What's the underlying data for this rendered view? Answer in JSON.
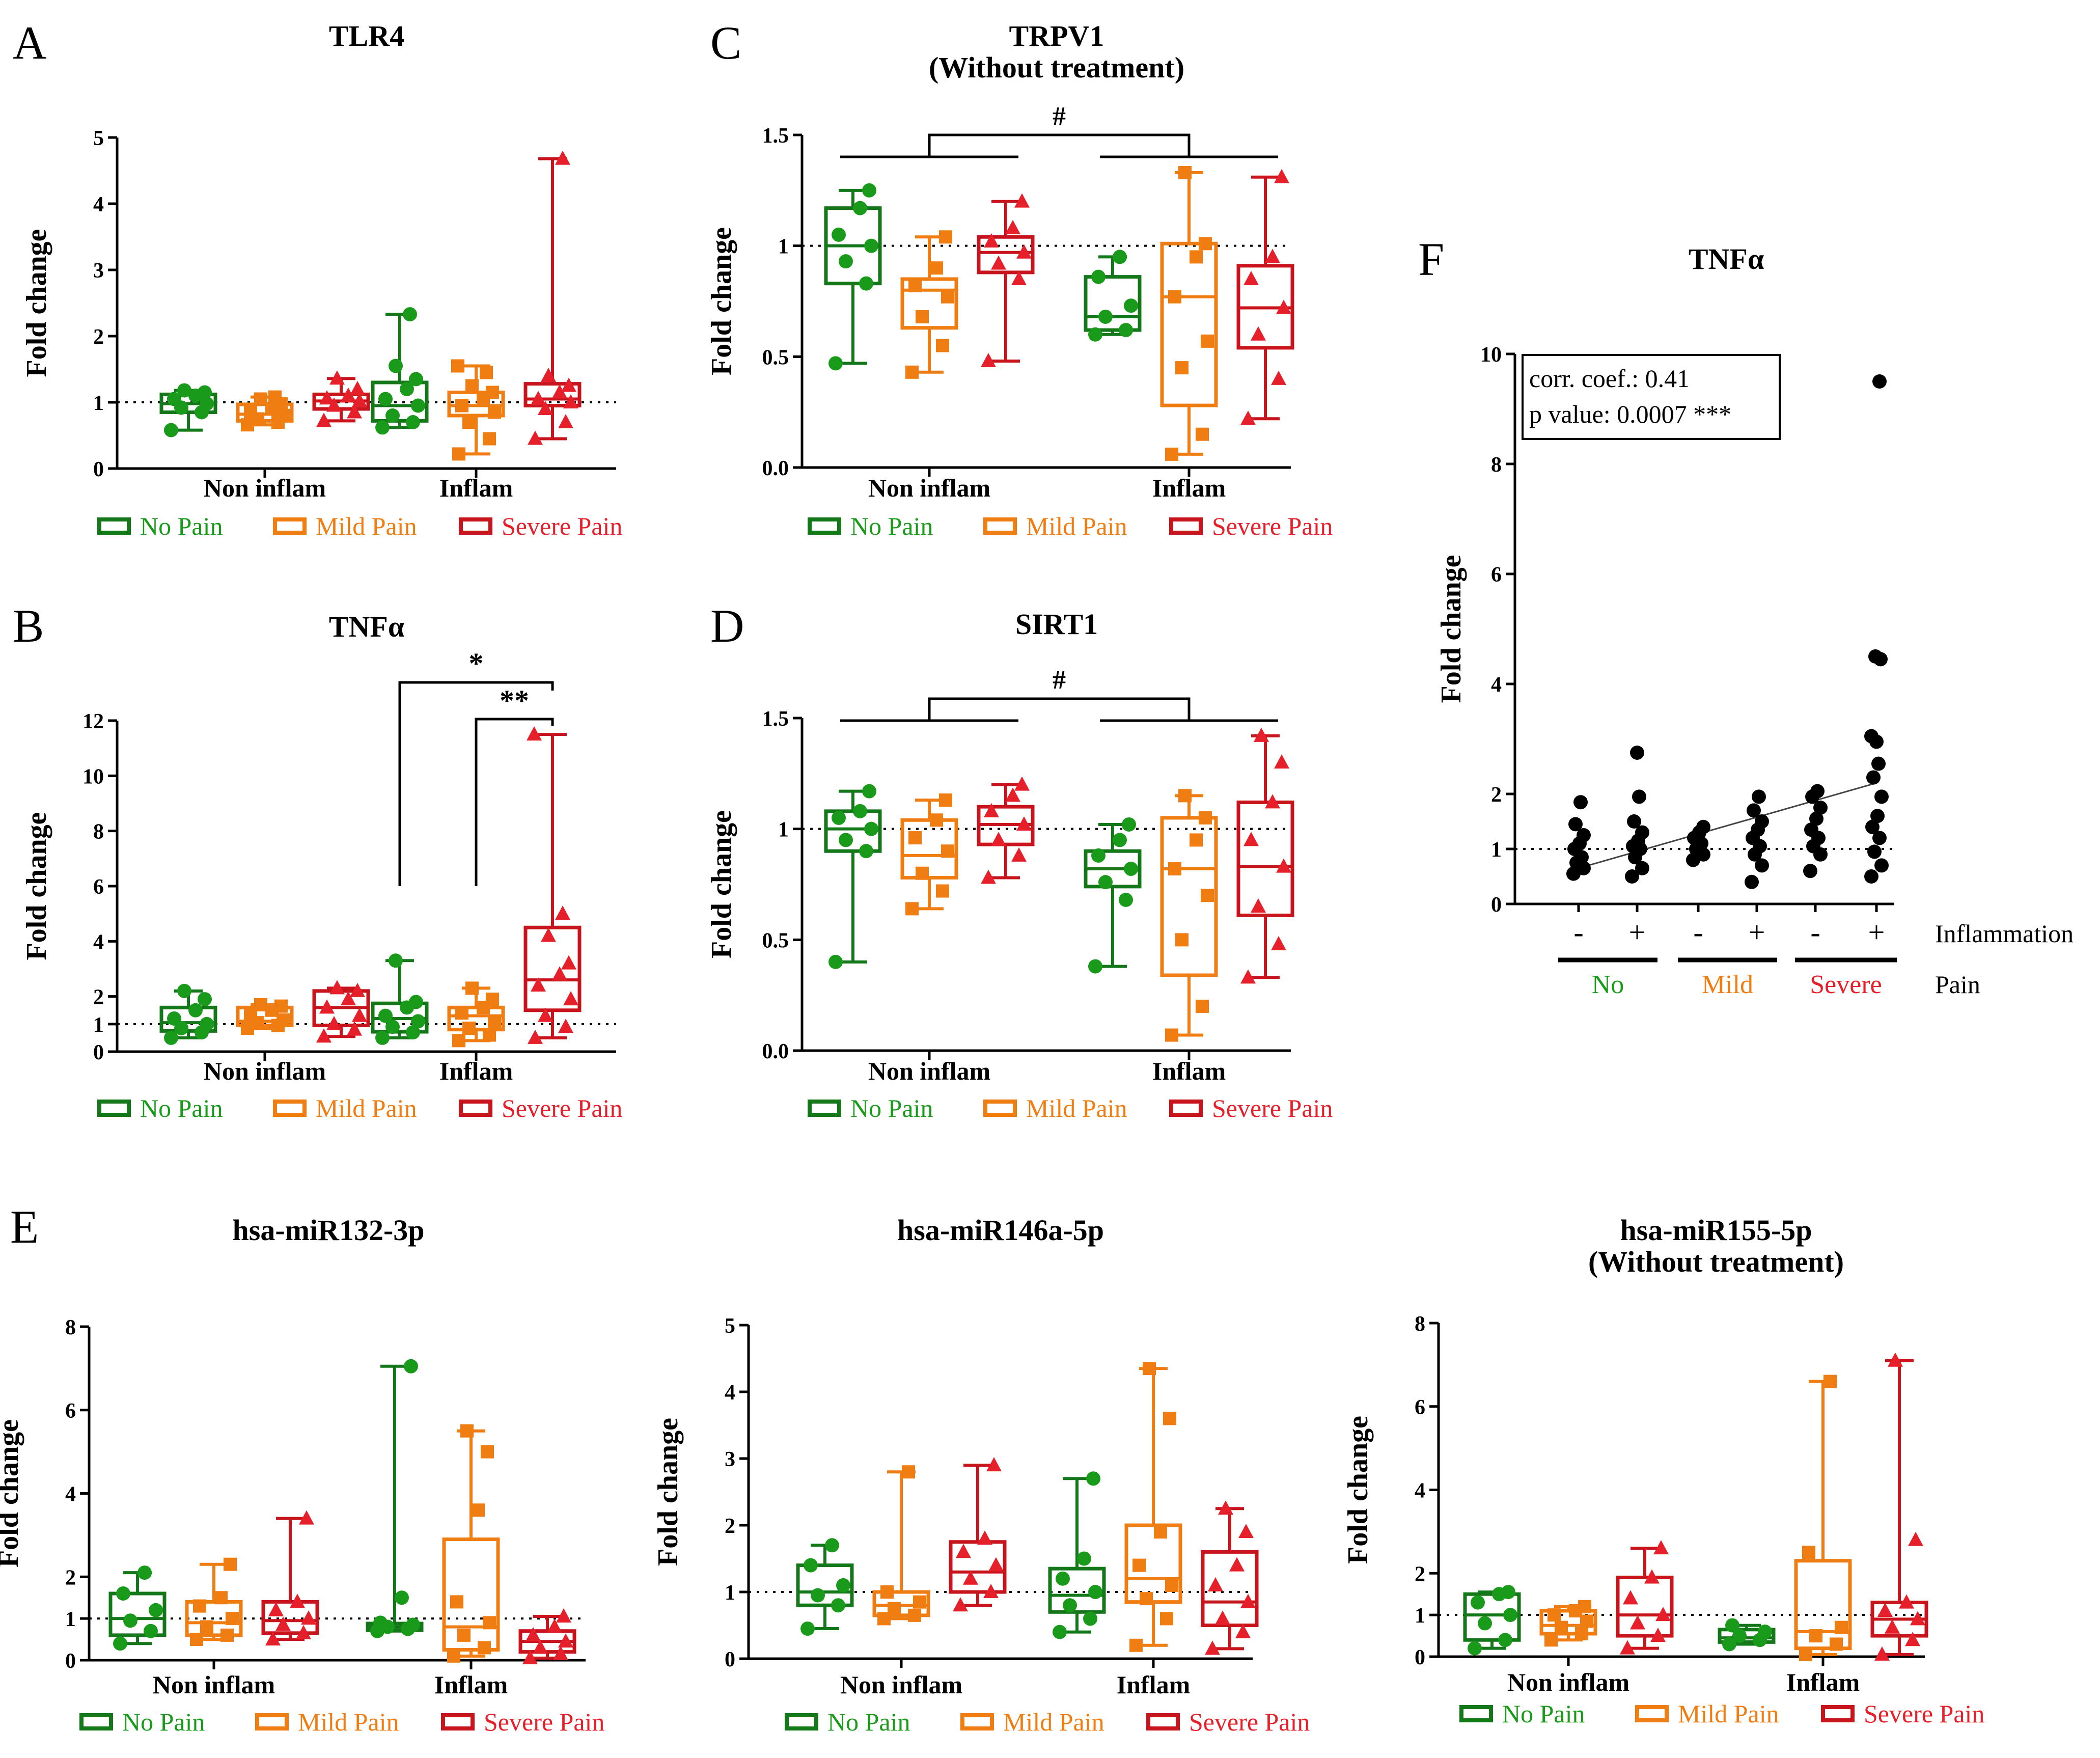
{
  "colors": {
    "no": "#1a9a1a",
    "mild": "#f07d12",
    "severe": "#e5202a",
    "black": "#000000",
    "dark_no": "#14781a",
    "dark_severe": "#c8141c"
  },
  "legend": {
    "no": "No Pain",
    "mild": "Mild Pain",
    "severe": "Severe Pain"
  },
  "group_labels": [
    "Non inflam",
    "Inflam"
  ],
  "ylabel": "Fold change",
  "chart_data": [
    {
      "id": "A",
      "panel_letter": "A",
      "type": "box",
      "title": [
        "TLR4"
      ],
      "ylabel": "Fold change",
      "yticks": [
        "0",
        "1",
        "2",
        "3",
        "4",
        "5"
      ],
      "ylim": [
        0,
        5
      ],
      "refline": 1,
      "groups": [
        "Non inflam",
        "Inflam"
      ],
      "boxes": [
        {
          "series": "no",
          "group": 0,
          "min": 0.58,
          "q1": 0.85,
          "median": 0.98,
          "q3": 1.12,
          "max": 1.18,
          "points": [
            0.58,
            0.85,
            0.92,
            0.98,
            1.05,
            1.1,
            1.15,
            1.18
          ]
        },
        {
          "series": "mild",
          "group": 0,
          "min": 0.66,
          "q1": 0.72,
          "median": 0.82,
          "q3": 0.97,
          "max": 1.08,
          "points": [
            0.66,
            0.7,
            0.75,
            0.8,
            0.85,
            0.9,
            0.98,
            1.05,
            1.08
          ]
        },
        {
          "series": "severe",
          "group": 0,
          "min": 0.72,
          "q1": 0.9,
          "median": 1.02,
          "q3": 1.12,
          "max": 1.36,
          "points": [
            0.72,
            0.85,
            0.95,
            1.02,
            1.06,
            1.1,
            1.2,
            1.36
          ]
        },
        {
          "series": "no",
          "group": 1,
          "min": 0.62,
          "q1": 0.72,
          "median": 0.95,
          "q3": 1.3,
          "max": 2.33,
          "points": [
            0.62,
            0.7,
            0.8,
            0.95,
            1.05,
            1.2,
            1.35,
            1.55,
            2.33
          ]
        },
        {
          "series": "mild",
          "group": 1,
          "min": 0.22,
          "q1": 0.8,
          "median": 0.95,
          "q3": 1.15,
          "max": 1.55,
          "points": [
            0.22,
            0.45,
            0.7,
            0.85,
            0.95,
            1.05,
            1.15,
            1.25,
            1.45,
            1.55
          ]
        },
        {
          "series": "severe",
          "group": 1,
          "min": 0.45,
          "q1": 0.95,
          "median": 1.05,
          "q3": 1.28,
          "max": 4.68,
          "points": [
            0.45,
            0.7,
            0.9,
            1.0,
            1.05,
            1.15,
            1.25,
            1.4,
            4.68
          ]
        }
      ]
    },
    {
      "id": "B",
      "panel_letter": "B",
      "type": "box",
      "title": [
        "TNFα"
      ],
      "ylabel": "Fold change",
      "yticks": [
        "0",
        "1",
        "2",
        "4",
        "6",
        "8",
        "10",
        "12"
      ],
      "ylim": [
        0,
        12
      ],
      "refline": 1,
      "groups": [
        "Non inflam",
        "Inflam"
      ],
      "annotations": [
        "*",
        "**"
      ],
      "boxes": [
        {
          "series": "no",
          "group": 0,
          "min": 0.5,
          "q1": 0.75,
          "median": 1.05,
          "q3": 1.6,
          "max": 2.2,
          "points": [
            0.5,
            0.7,
            0.85,
            1.0,
            1.2,
            1.5,
            1.9,
            2.2
          ]
        },
        {
          "series": "mild",
          "group": 0,
          "min": 0.85,
          "q1": 0.95,
          "median": 1.1,
          "q3": 1.6,
          "max": 1.7,
          "points": [
            0.85,
            0.95,
            1.05,
            1.15,
            1.3,
            1.5,
            1.65,
            1.7
          ]
        },
        {
          "series": "severe",
          "group": 0,
          "min": 0.55,
          "q1": 0.95,
          "median": 1.6,
          "q3": 2.2,
          "max": 2.3,
          "points": [
            0.55,
            0.8,
            1.0,
            1.3,
            1.6,
            1.9,
            2.2,
            2.3
          ]
        },
        {
          "series": "no",
          "group": 1,
          "min": 0.5,
          "q1": 0.72,
          "median": 1.2,
          "q3": 1.75,
          "max": 3.3,
          "points": [
            0.5,
            0.7,
            0.9,
            1.1,
            1.3,
            1.6,
            1.8,
            3.3
          ]
        },
        {
          "series": "mild",
          "group": 1,
          "min": 0.4,
          "q1": 0.8,
          "median": 1.3,
          "q3": 1.6,
          "max": 2.3,
          "points": [
            0.4,
            0.6,
            0.85,
            1.1,
            1.4,
            1.6,
            1.9,
            2.3
          ]
        },
        {
          "series": "severe",
          "group": 1,
          "min": 0.5,
          "q1": 1.5,
          "median": 2.6,
          "q3": 4.5,
          "max": 11.5,
          "points": [
            0.5,
            0.9,
            1.3,
            1.9,
            2.4,
            2.8,
            3.2,
            4.2,
            5.0,
            11.5
          ]
        }
      ]
    },
    {
      "id": "C",
      "panel_letter": "C",
      "type": "box",
      "title": [
        "TRPV1",
        "(Without treatment)"
      ],
      "ylabel": "Fold change",
      "yticks": [
        "0.0",
        "0.5",
        "1",
        "1.5"
      ],
      "ylim": [
        0,
        1.5
      ],
      "refline": 1,
      "groups": [
        "Non inflam",
        "Inflam"
      ],
      "annotations": [
        "#"
      ],
      "boxes": [
        {
          "series": "no",
          "group": 0,
          "min": 0.47,
          "q1": 0.83,
          "median": 1.0,
          "q3": 1.17,
          "max": 1.25,
          "points": [
            0.47,
            0.83,
            0.93,
            1.0,
            1.05,
            1.17,
            1.25
          ]
        },
        {
          "series": "mild",
          "group": 0,
          "min": 0.43,
          "q1": 0.63,
          "median": 0.8,
          "q3": 0.85,
          "max": 1.04,
          "points": [
            0.43,
            0.55,
            0.68,
            0.77,
            0.82,
            0.9,
            1.04
          ]
        },
        {
          "series": "severe",
          "group": 0,
          "min": 0.48,
          "q1": 0.88,
          "median": 0.97,
          "q3": 1.04,
          "max": 1.2,
          "points": [
            0.48,
            0.85,
            0.92,
            0.97,
            1.02,
            1.08,
            1.2
          ]
        },
        {
          "series": "no",
          "group": 1,
          "min": 0.6,
          "q1": 0.62,
          "median": 0.68,
          "q3": 0.86,
          "max": 0.95,
          "points": [
            0.6,
            0.62,
            0.68,
            0.73,
            0.86,
            0.95
          ]
        },
        {
          "series": "mild",
          "group": 1,
          "min": 0.06,
          "q1": 0.28,
          "median": 0.77,
          "q3": 1.01,
          "max": 1.33,
          "points": [
            0.06,
            0.15,
            0.45,
            0.57,
            0.77,
            0.95,
            1.01,
            1.33
          ]
        },
        {
          "series": "severe",
          "group": 1,
          "min": 0.22,
          "q1": 0.54,
          "median": 0.72,
          "q3": 0.91,
          "max": 1.31,
          "points": [
            0.22,
            0.4,
            0.6,
            0.72,
            0.85,
            0.95,
            1.31
          ]
        }
      ]
    },
    {
      "id": "D",
      "panel_letter": "D",
      "type": "box",
      "title": [
        "SIRT1"
      ],
      "ylabel": "Fold change",
      "yticks": [
        "0.0",
        "0.5",
        "1",
        "1.5"
      ],
      "ylim": [
        0,
        1.5
      ],
      "refline": 1,
      "groups": [
        "Non inflam",
        "Inflam"
      ],
      "annotations": [
        "#"
      ],
      "boxes": [
        {
          "series": "no",
          "group": 0,
          "min": 0.4,
          "q1": 0.9,
          "median": 1.0,
          "q3": 1.08,
          "max": 1.17,
          "points": [
            0.4,
            0.9,
            0.95,
            1.0,
            1.05,
            1.08,
            1.17
          ]
        },
        {
          "series": "mild",
          "group": 0,
          "min": 0.64,
          "q1": 0.78,
          "median": 0.88,
          "q3": 1.04,
          "max": 1.13,
          "points": [
            0.64,
            0.72,
            0.8,
            0.9,
            0.96,
            1.04,
            1.13
          ]
        },
        {
          "series": "severe",
          "group": 0,
          "min": 0.78,
          "q1": 0.93,
          "median": 1.02,
          "q3": 1.1,
          "max": 1.2,
          "points": [
            0.78,
            0.88,
            0.95,
            1.02,
            1.08,
            1.15,
            1.2
          ]
        },
        {
          "series": "no",
          "group": 1,
          "min": 0.38,
          "q1": 0.74,
          "median": 0.82,
          "q3": 0.9,
          "max": 1.02,
          "points": [
            0.38,
            0.68,
            0.76,
            0.82,
            0.88,
            0.95,
            1.02
          ]
        },
        {
          "series": "mild",
          "group": 1,
          "min": 0.07,
          "q1": 0.34,
          "median": 0.82,
          "q3": 1.05,
          "max": 1.15,
          "points": [
            0.07,
            0.2,
            0.5,
            0.7,
            0.82,
            0.95,
            1.05,
            1.15
          ]
        },
        {
          "series": "severe",
          "group": 1,
          "min": 0.33,
          "q1": 0.61,
          "median": 0.83,
          "q3": 1.12,
          "max": 1.42,
          "points": [
            0.33,
            0.48,
            0.65,
            0.83,
            0.95,
            1.12,
            1.3,
            1.42
          ]
        }
      ]
    },
    {
      "id": "E1",
      "panel_letter": "E",
      "type": "box",
      "title": [
        "hsa-miR132-3p"
      ],
      "ylabel": "Fold change",
      "yticks": [
        "0",
        "1",
        "2",
        "4",
        "6",
        "8"
      ],
      "ylim": [
        0,
        8
      ],
      "refline": 1,
      "groups": [
        "Non inflam",
        "Inflam"
      ],
      "boxes": [
        {
          "series": "no",
          "group": 0,
          "min": 0.4,
          "q1": 0.6,
          "median": 1.0,
          "q3": 1.6,
          "max": 2.1,
          "points": [
            0.4,
            0.7,
            0.95,
            1.2,
            1.6,
            2.1
          ]
        },
        {
          "series": "mild",
          "group": 0,
          "min": 0.5,
          "q1": 0.6,
          "median": 0.9,
          "q3": 1.4,
          "max": 2.3,
          "points": [
            0.5,
            0.6,
            0.8,
            1.0,
            1.3,
            1.5,
            2.3
          ]
        },
        {
          "series": "severe",
          "group": 0,
          "min": 0.5,
          "q1": 0.65,
          "median": 0.95,
          "q3": 1.4,
          "max": 3.4,
          "points": [
            0.5,
            0.65,
            0.85,
            1.0,
            1.2,
            1.4,
            3.4
          ]
        },
        {
          "series": "no",
          "group": 1,
          "min": 0.7,
          "q1": 0.72,
          "median": 0.8,
          "q3": 0.88,
          "max": 7.05,
          "points": [
            0.7,
            0.75,
            0.8,
            0.85,
            0.9,
            1.5,
            7.05
          ]
        },
        {
          "series": "mild",
          "group": 1,
          "min": 0.1,
          "q1": 0.25,
          "median": 0.8,
          "q3": 2.9,
          "max": 5.5,
          "points": [
            0.1,
            0.3,
            0.6,
            0.9,
            1.4,
            3.6,
            5.0,
            5.5
          ]
        },
        {
          "series": "severe",
          "group": 1,
          "min": 0.05,
          "q1": 0.2,
          "median": 0.45,
          "q3": 0.7,
          "max": 1.05,
          "points": [
            0.05,
            0.15,
            0.3,
            0.45,
            0.6,
            0.8,
            1.05
          ]
        }
      ]
    },
    {
      "id": "E2",
      "panel_letter": "",
      "type": "box",
      "title": [
        "hsa-miR146a-5p"
      ],
      "ylabel": "Fold change",
      "yticks": [
        "0",
        "1",
        "2",
        "3",
        "4",
        "5"
      ],
      "ylim": [
        0,
        5
      ],
      "refline": 1,
      "groups": [
        "Non inflam",
        "Inflam"
      ],
      "boxes": [
        {
          "series": "no",
          "group": 0,
          "min": 0.45,
          "q1": 0.8,
          "median": 1.0,
          "q3": 1.4,
          "max": 1.7,
          "points": [
            0.45,
            0.8,
            0.95,
            1.1,
            1.4,
            1.7
          ]
        },
        {
          "series": "mild",
          "group": 0,
          "min": 0.6,
          "q1": 0.65,
          "median": 0.8,
          "q3": 1.0,
          "max": 2.8,
          "points": [
            0.6,
            0.65,
            0.75,
            0.85,
            1.0,
            2.8
          ]
        },
        {
          "series": "severe",
          "group": 0,
          "min": 0.8,
          "q1": 1.0,
          "median": 1.3,
          "q3": 1.75,
          "max": 2.9,
          "points": [
            0.8,
            1.0,
            1.2,
            1.4,
            1.6,
            1.8,
            2.9
          ]
        },
        {
          "series": "no",
          "group": 1,
          "min": 0.4,
          "q1": 0.7,
          "median": 0.95,
          "q3": 1.35,
          "max": 2.7,
          "points": [
            0.4,
            0.6,
            0.8,
            1.0,
            1.2,
            1.5,
            2.7
          ]
        },
        {
          "series": "mild",
          "group": 1,
          "min": 0.2,
          "q1": 0.85,
          "median": 1.2,
          "q3": 2.0,
          "max": 4.35,
          "points": [
            0.2,
            0.6,
            0.9,
            1.1,
            1.4,
            1.9,
            3.6,
            4.35
          ]
        },
        {
          "series": "severe",
          "group": 1,
          "min": 0.15,
          "q1": 0.5,
          "median": 0.85,
          "q3": 1.6,
          "max": 2.25,
          "points": [
            0.15,
            0.4,
            0.6,
            0.85,
            1.1,
            1.4,
            1.9,
            2.25
          ]
        }
      ]
    },
    {
      "id": "E3",
      "panel_letter": "",
      "type": "box",
      "title": [
        "hsa-miR155-5p",
        "(Without treatment)"
      ],
      "ylabel": "Fold change",
      "yticks": [
        "0",
        "1",
        "2",
        "4",
        "6",
        "8"
      ],
      "ylim": [
        0,
        8
      ],
      "refline": 1,
      "groups": [
        "Non inflam",
        "Inflam"
      ],
      "boxes": [
        {
          "series": "no",
          "group": 0,
          "min": 0.2,
          "q1": 0.4,
          "median": 1.0,
          "q3": 1.5,
          "max": 1.55,
          "points": [
            0.2,
            0.4,
            0.8,
            1.0,
            1.3,
            1.5,
            1.55
          ]
        },
        {
          "series": "mild",
          "group": 0,
          "min": 0.4,
          "q1": 0.55,
          "median": 0.75,
          "q3": 1.1,
          "max": 1.2,
          "points": [
            0.4,
            0.55,
            0.7,
            0.85,
            1.0,
            1.1,
            1.2
          ]
        },
        {
          "series": "severe",
          "group": 0,
          "min": 0.2,
          "q1": 0.5,
          "median": 1.0,
          "q3": 1.9,
          "max": 2.6,
          "points": [
            0.2,
            0.5,
            0.8,
            1.0,
            1.4,
            1.9,
            2.6
          ]
        },
        {
          "series": "no",
          "group": 1,
          "min": 0.3,
          "q1": 0.35,
          "median": 0.45,
          "q3": 0.65,
          "max": 0.75,
          "points": [
            0.3,
            0.4,
            0.5,
            0.6,
            0.75
          ]
        },
        {
          "series": "mild",
          "group": 1,
          "min": 0.05,
          "q1": 0.2,
          "median": 0.6,
          "q3": 2.3,
          "max": 6.6,
          "points": [
            0.05,
            0.3,
            0.5,
            0.7,
            2.5,
            6.6
          ]
        },
        {
          "series": "severe",
          "group": 1,
          "min": 0.05,
          "q1": 0.5,
          "median": 0.9,
          "q3": 1.3,
          "max": 7.1,
          "points": [
            0.05,
            0.4,
            0.7,
            0.9,
            1.1,
            1.3,
            2.8,
            7.1
          ]
        }
      ]
    },
    {
      "id": "F",
      "panel_letter": "F",
      "type": "scatter",
      "title": [
        "TNFα"
      ],
      "ylabel": "Fold change",
      "yticks": [
        "0",
        "1",
        "2",
        "4",
        "6",
        "8",
        "10"
      ],
      "ylim": [
        0,
        10
      ],
      "refline": 1,
      "stats": {
        "corr": "corr. coef.: 0.41",
        "pval": "p value: 0.0007 ***"
      },
      "xsigns": [
        "-",
        "+",
        "-",
        "+",
        "-",
        "+"
      ],
      "pain_groups": [
        "No",
        "Mild",
        "Severe"
      ],
      "row_labels": {
        "inflammation": "Inflammation",
        "pain": "Pain"
      },
      "trend": {
        "start": [
          0,
          0.65
        ],
        "end": [
          5,
          2.2
        ]
      },
      "columns": [
        [
          0.55,
          0.65,
          0.75,
          0.85,
          1.0,
          1.1,
          1.25,
          1.45,
          1.85
        ],
        [
          0.5,
          0.65,
          0.85,
          1.0,
          1.05,
          1.15,
          1.3,
          1.5,
          1.95,
          2.75
        ],
        [
          0.8,
          0.9,
          1.0,
          1.1,
          1.2,
          1.3,
          1.4
        ],
        [
          0.4,
          0.7,
          0.9,
          1.05,
          1.2,
          1.35,
          1.5,
          1.7,
          1.95
        ],
        [
          0.6,
          0.9,
          1.05,
          1.2,
          1.35,
          1.55,
          1.75,
          1.95,
          2.05
        ],
        [
          0.5,
          0.7,
          0.95,
          1.2,
          1.4,
          1.6,
          1.95,
          2.3,
          2.55,
          2.95,
          3.05,
          4.45,
          4.5,
          9.5
        ]
      ]
    }
  ]
}
